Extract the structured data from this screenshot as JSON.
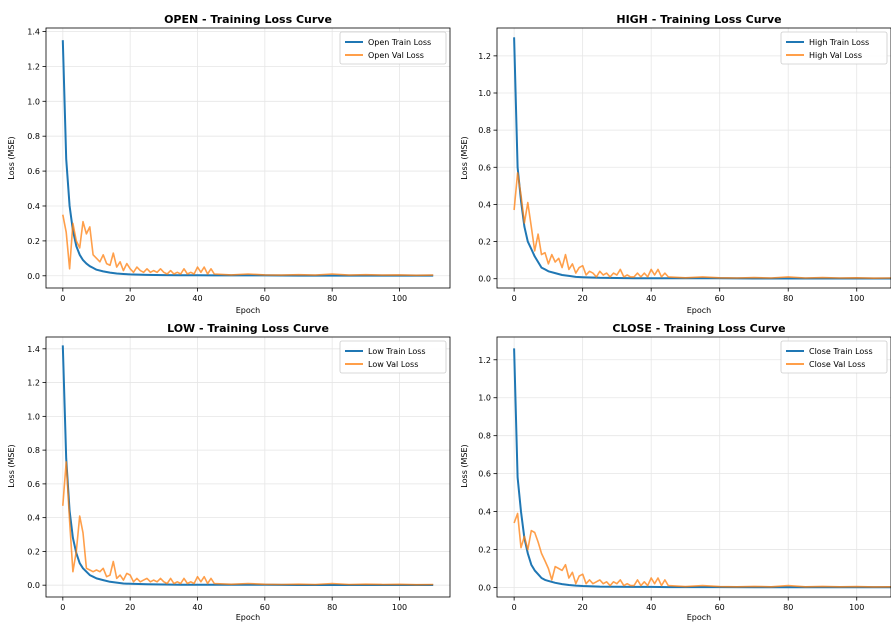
{
  "colors": {
    "train": "#1f77b4",
    "val": "#ff7f0e",
    "grid": "#e6e6e6",
    "axes": "#000000"
  },
  "chart_data": [
    {
      "type": "line",
      "title": "OPEN - Training Loss Curve",
      "xlabel": "Epoch",
      "ylabel": "Loss (MSE)",
      "xlim": [
        -5,
        115
      ],
      "ylim": [
        -0.07,
        1.42
      ],
      "xticks": [
        0,
        20,
        40,
        60,
        80,
        100
      ],
      "yticks": [
        0.0,
        0.2,
        0.4,
        0.6,
        0.8,
        1.0,
        1.2,
        1.4
      ],
      "ytick_labels": [
        "0.0",
        "0.2",
        "0.4",
        "0.6",
        "0.8",
        "1.0",
        "1.2",
        "1.4"
      ],
      "grid": true,
      "legend": "top-right",
      "series": [
        {
          "name": "Open Train Loss",
          "x": [
            0,
            1,
            2,
            3,
            4,
            5,
            6,
            7,
            8,
            9,
            10,
            12,
            14,
            16,
            18,
            20,
            25,
            30,
            35,
            40,
            45,
            50,
            60,
            70,
            80,
            90,
            100,
            110
          ],
          "y": [
            1.35,
            0.67,
            0.4,
            0.26,
            0.17,
            0.12,
            0.09,
            0.07,
            0.055,
            0.045,
            0.035,
            0.025,
            0.018,
            0.013,
            0.01,
            0.008,
            0.005,
            0.004,
            0.003,
            0.003,
            0.002,
            0.002,
            0.002,
            0.001,
            0.001,
            0.001,
            0.001,
            0.001
          ]
        },
        {
          "name": "Open Val Loss",
          "x": [
            0,
            1,
            2,
            3,
            4,
            5,
            6,
            7,
            8,
            9,
            10,
            11,
            12,
            13,
            14,
            15,
            16,
            17,
            18,
            19,
            20,
            21,
            22,
            23,
            24,
            25,
            26,
            27,
            28,
            29,
            30,
            31,
            32,
            33,
            34,
            35,
            36,
            37,
            38,
            39,
            40,
            41,
            42,
            43,
            44,
            45,
            50,
            55,
            60,
            65,
            70,
            75,
            80,
            85,
            90,
            95,
            100,
            105,
            110
          ],
          "y": [
            0.35,
            0.25,
            0.04,
            0.3,
            0.2,
            0.16,
            0.31,
            0.24,
            0.28,
            0.12,
            0.1,
            0.08,
            0.12,
            0.07,
            0.06,
            0.13,
            0.05,
            0.08,
            0.03,
            0.07,
            0.04,
            0.02,
            0.05,
            0.03,
            0.02,
            0.04,
            0.02,
            0.03,
            0.02,
            0.04,
            0.02,
            0.01,
            0.03,
            0.01,
            0.02,
            0.01,
            0.04,
            0.01,
            0.02,
            0.01,
            0.05,
            0.02,
            0.05,
            0.01,
            0.04,
            0.01,
            0.005,
            0.01,
            0.005,
            0.004,
            0.006,
            0.004,
            0.01,
            0.004,
            0.006,
            0.004,
            0.005,
            0.003,
            0.004
          ]
        }
      ]
    },
    {
      "type": "line",
      "title": "HIGH - Training Loss Curve",
      "xlabel": "Epoch",
      "ylabel": "Loss (MSE)",
      "xlim": [
        -5,
        110
      ],
      "ylim": [
        -0.05,
        1.35
      ],
      "xticks": [
        0,
        20,
        40,
        60,
        80,
        100
      ],
      "yticks": [
        0.0,
        0.2,
        0.4,
        0.6,
        0.8,
        1.0,
        1.2
      ],
      "ytick_labels": [
        "0.0",
        "0.2",
        "0.4",
        "0.6",
        "0.8",
        "1.0",
        "1.2"
      ],
      "grid": true,
      "legend": "top-right",
      "series": [
        {
          "name": "High Train Loss",
          "x": [
            0,
            1,
            2,
            3,
            4,
            5,
            6,
            7,
            8,
            9,
            10,
            12,
            14,
            16,
            18,
            20,
            25,
            30,
            35,
            40,
            45,
            50,
            60,
            70,
            80,
            90,
            100,
            110
          ],
          "y": [
            1.3,
            0.6,
            0.42,
            0.28,
            0.2,
            0.16,
            0.12,
            0.09,
            0.06,
            0.05,
            0.04,
            0.03,
            0.02,
            0.015,
            0.01,
            0.008,
            0.005,
            0.004,
            0.003,
            0.003,
            0.002,
            0.002,
            0.002,
            0.001,
            0.001,
            0.001,
            0.001,
            0.001
          ]
        },
        {
          "name": "High Val Loss",
          "x": [
            0,
            1,
            2,
            3,
            4,
            5,
            6,
            7,
            8,
            9,
            10,
            11,
            12,
            13,
            14,
            15,
            16,
            17,
            18,
            19,
            20,
            21,
            22,
            23,
            24,
            25,
            26,
            27,
            28,
            29,
            30,
            31,
            32,
            33,
            34,
            35,
            36,
            37,
            38,
            39,
            40,
            41,
            42,
            43,
            44,
            45,
            50,
            55,
            60,
            65,
            70,
            75,
            80,
            85,
            90,
            95,
            100,
            105,
            110
          ],
          "y": [
            0.37,
            0.57,
            0.45,
            0.3,
            0.41,
            0.28,
            0.15,
            0.24,
            0.13,
            0.14,
            0.08,
            0.13,
            0.09,
            0.11,
            0.06,
            0.13,
            0.05,
            0.08,
            0.03,
            0.06,
            0.07,
            0.02,
            0.04,
            0.03,
            0.01,
            0.04,
            0.02,
            0.03,
            0.01,
            0.03,
            0.02,
            0.05,
            0.01,
            0.02,
            0.01,
            0.01,
            0.03,
            0.01,
            0.03,
            0.01,
            0.05,
            0.02,
            0.05,
            0.01,
            0.03,
            0.01,
            0.005,
            0.01,
            0.005,
            0.004,
            0.006,
            0.004,
            0.01,
            0.004,
            0.006,
            0.004,
            0.005,
            0.003,
            0.004
          ]
        }
      ]
    },
    {
      "type": "line",
      "title": "LOW - Training Loss Curve",
      "xlabel": "Epoch",
      "ylabel": "Loss (MSE)",
      "xlim": [
        -5,
        115
      ],
      "ylim": [
        -0.07,
        1.47
      ],
      "xticks": [
        0,
        20,
        40,
        60,
        80,
        100
      ],
      "yticks": [
        0.0,
        0.2,
        0.4,
        0.6,
        0.8,
        1.0,
        1.2,
        1.4
      ],
      "ytick_labels": [
        "0.0",
        "0.2",
        "0.4",
        "0.6",
        "0.8",
        "1.0",
        "1.2",
        "1.4"
      ],
      "grid": true,
      "legend": "top-right",
      "series": [
        {
          "name": "Low Train Loss",
          "x": [
            0,
            1,
            2,
            3,
            4,
            5,
            6,
            7,
            8,
            9,
            10,
            12,
            14,
            16,
            18,
            20,
            25,
            30,
            35,
            40,
            45,
            50,
            60,
            70,
            80,
            90,
            100,
            110
          ],
          "y": [
            1.42,
            0.75,
            0.44,
            0.28,
            0.19,
            0.13,
            0.1,
            0.08,
            0.06,
            0.05,
            0.04,
            0.03,
            0.02,
            0.015,
            0.01,
            0.008,
            0.005,
            0.004,
            0.003,
            0.003,
            0.002,
            0.002,
            0.002,
            0.001,
            0.001,
            0.001,
            0.001,
            0.001
          ]
        },
        {
          "name": "Low Val Loss",
          "x": [
            0,
            1,
            2,
            3,
            4,
            5,
            6,
            7,
            8,
            9,
            10,
            11,
            12,
            13,
            14,
            15,
            16,
            17,
            18,
            19,
            20,
            21,
            22,
            23,
            24,
            25,
            26,
            27,
            28,
            29,
            30,
            31,
            32,
            33,
            34,
            35,
            36,
            37,
            38,
            39,
            40,
            41,
            42,
            43,
            44,
            45,
            50,
            55,
            60,
            65,
            70,
            75,
            80,
            85,
            90,
            95,
            100,
            105,
            110
          ],
          "y": [
            0.47,
            0.73,
            0.38,
            0.08,
            0.2,
            0.41,
            0.31,
            0.1,
            0.09,
            0.08,
            0.09,
            0.08,
            0.1,
            0.05,
            0.06,
            0.14,
            0.04,
            0.06,
            0.03,
            0.07,
            0.06,
            0.02,
            0.04,
            0.02,
            0.03,
            0.04,
            0.02,
            0.03,
            0.02,
            0.04,
            0.02,
            0.01,
            0.04,
            0.01,
            0.02,
            0.01,
            0.04,
            0.01,
            0.02,
            0.01,
            0.05,
            0.02,
            0.05,
            0.01,
            0.04,
            0.01,
            0.005,
            0.01,
            0.005,
            0.004,
            0.006,
            0.004,
            0.01,
            0.004,
            0.006,
            0.004,
            0.005,
            0.003,
            0.004
          ]
        }
      ]
    },
    {
      "type": "line",
      "title": "CLOSE - Training Loss Curve",
      "xlabel": "Epoch",
      "ylabel": "Loss (MSE)",
      "xlim": [
        -5,
        110
      ],
      "ylim": [
        -0.05,
        1.32
      ],
      "xticks": [
        0,
        20,
        40,
        60,
        80,
        100
      ],
      "yticks": [
        0.0,
        0.2,
        0.4,
        0.6,
        0.8,
        1.0,
        1.2
      ],
      "ytick_labels": [
        "0.0",
        "0.2",
        "0.4",
        "0.6",
        "0.8",
        "1.0",
        "1.2"
      ],
      "grid": true,
      "legend": "top-right",
      "series": [
        {
          "name": "Close Train Loss",
          "x": [
            0,
            1,
            2,
            3,
            4,
            5,
            6,
            7,
            8,
            9,
            10,
            12,
            14,
            16,
            18,
            20,
            25,
            30,
            35,
            40,
            45,
            50,
            60,
            70,
            80,
            90,
            100,
            110
          ],
          "y": [
            1.26,
            0.58,
            0.4,
            0.26,
            0.18,
            0.12,
            0.09,
            0.07,
            0.05,
            0.04,
            0.035,
            0.025,
            0.018,
            0.013,
            0.01,
            0.008,
            0.005,
            0.004,
            0.003,
            0.003,
            0.002,
            0.002,
            0.002,
            0.001,
            0.001,
            0.001,
            0.001,
            0.001
          ]
        },
        {
          "name": "Close Val Loss",
          "x": [
            0,
            1,
            2,
            3,
            4,
            5,
            6,
            7,
            8,
            9,
            10,
            11,
            12,
            13,
            14,
            15,
            16,
            17,
            18,
            19,
            20,
            21,
            22,
            23,
            24,
            25,
            26,
            27,
            28,
            29,
            30,
            31,
            32,
            33,
            34,
            35,
            36,
            37,
            38,
            39,
            40,
            41,
            42,
            43,
            44,
            45,
            50,
            55,
            60,
            65,
            70,
            75,
            80,
            85,
            90,
            95,
            100,
            105,
            110
          ],
          "y": [
            0.34,
            0.39,
            0.21,
            0.27,
            0.2,
            0.3,
            0.29,
            0.24,
            0.18,
            0.14,
            0.1,
            0.04,
            0.11,
            0.1,
            0.09,
            0.12,
            0.05,
            0.08,
            0.02,
            0.06,
            0.07,
            0.02,
            0.04,
            0.02,
            0.03,
            0.04,
            0.02,
            0.03,
            0.01,
            0.03,
            0.02,
            0.04,
            0.01,
            0.02,
            0.01,
            0.01,
            0.04,
            0.01,
            0.03,
            0.01,
            0.05,
            0.02,
            0.05,
            0.01,
            0.04,
            0.01,
            0.005,
            0.01,
            0.005,
            0.004,
            0.006,
            0.004,
            0.01,
            0.004,
            0.006,
            0.004,
            0.005,
            0.003,
            0.004
          ]
        }
      ]
    }
  ]
}
